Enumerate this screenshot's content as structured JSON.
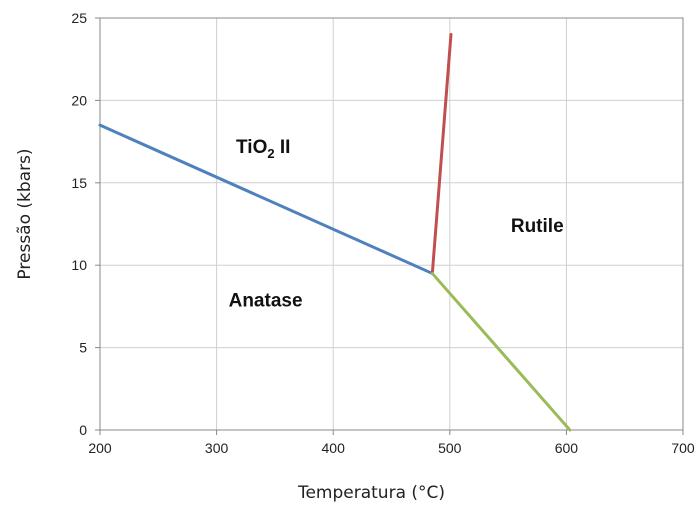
{
  "chart_data": {
    "type": "line",
    "xlabel": "Temperatura (°C)",
    "ylabel": "Pressão (kbars)",
    "xlim": [
      200,
      700
    ],
    "ylim": [
      0,
      25
    ],
    "x_ticks": [
      200,
      300,
      400,
      500,
      600,
      700
    ],
    "y_ticks": [
      0,
      5,
      10,
      15,
      20,
      25
    ],
    "grid": true,
    "series": [
      {
        "color": "#4f81bd",
        "points": [
          [
            200,
            18.5
          ],
          [
            485,
            9.5
          ]
        ]
      },
      {
        "color": "#c0504d",
        "points": [
          [
            485,
            9.5
          ],
          [
            501,
            24
          ]
        ]
      },
      {
        "color": "#9bbb59",
        "points": [
          [
            485,
            9.5
          ],
          [
            603,
            0
          ]
        ]
      }
    ],
    "annotations": [
      {
        "label": "TiO",
        "subscript": "2",
        "suffix": " II",
        "x": 340,
        "y": 16.8
      },
      {
        "label": "Rutile",
        "x": 575,
        "y": 12
      },
      {
        "label": "Anatase",
        "x": 342,
        "y": 7.5
      }
    ]
  }
}
